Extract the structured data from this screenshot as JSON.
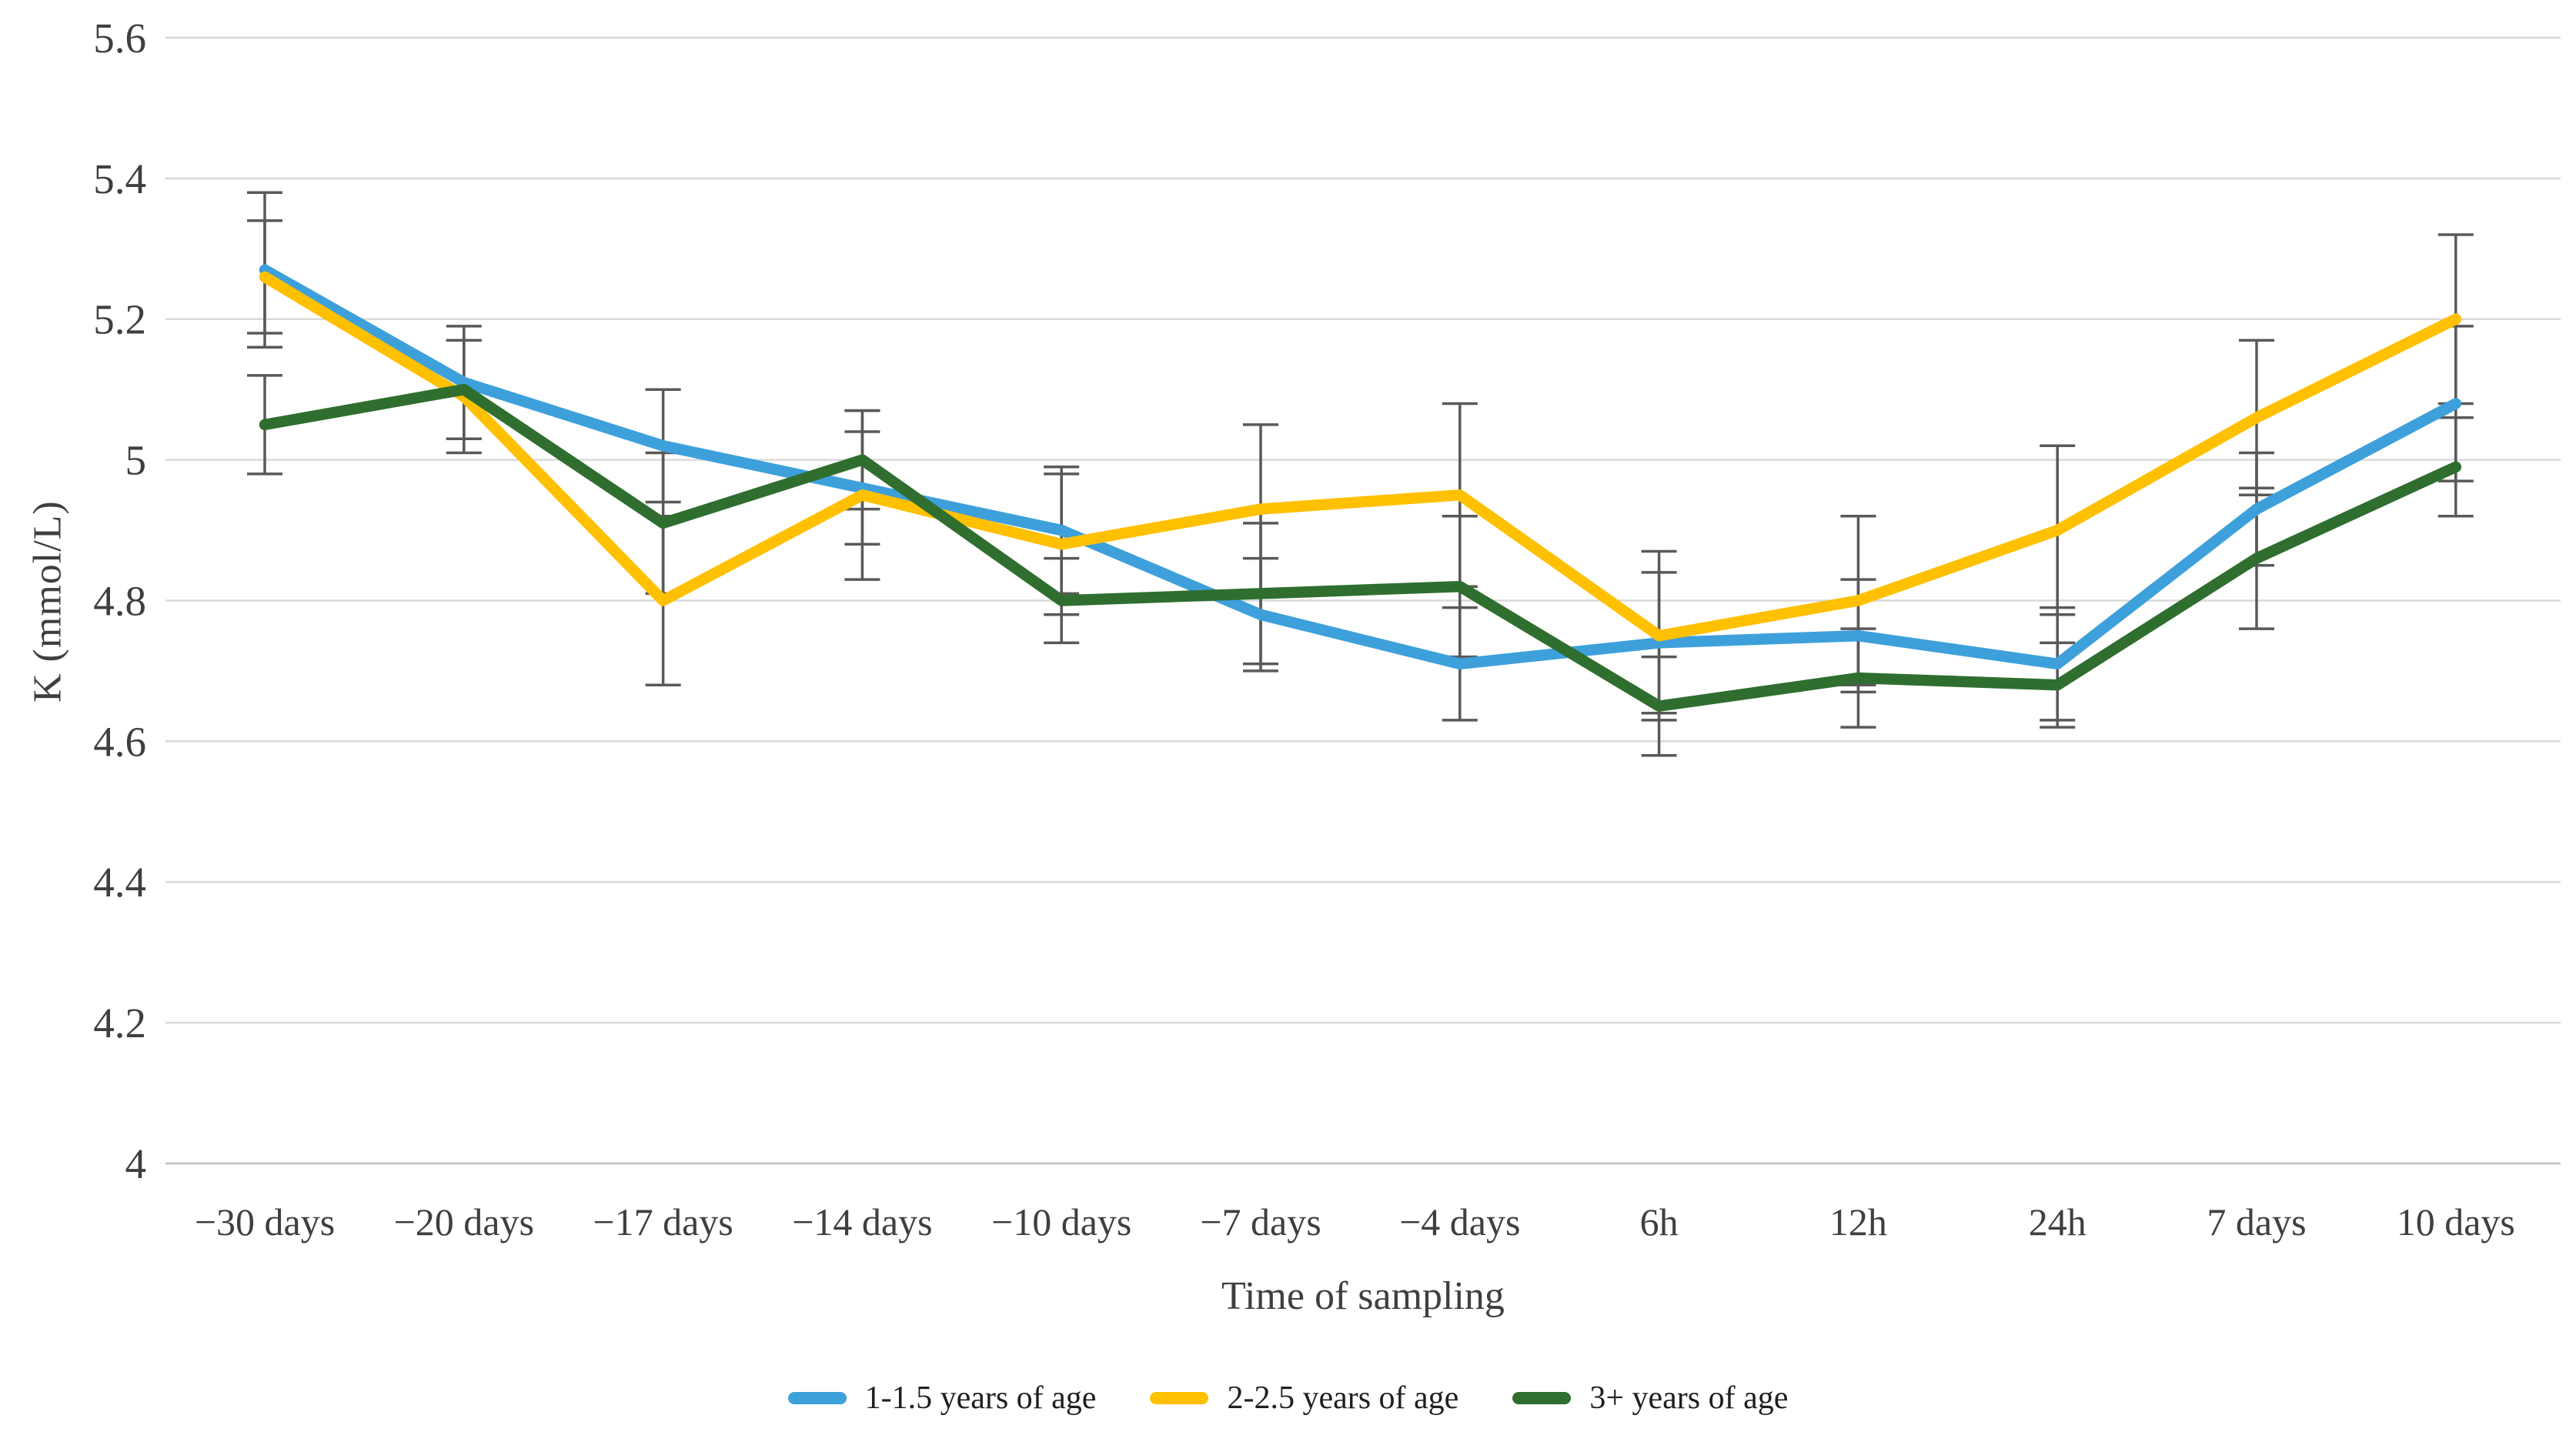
{
  "figure": {
    "background": "#FFFFFF",
    "text_color": "#3F3F3F",
    "grid_color": "#D9D9D9",
    "baseline_color": "#C8C8C8",
    "error_bar_color": "#595959"
  },
  "chart_data": {
    "type": "line",
    "title": "",
    "xlabel": "Time of sampling",
    "ylabel": "K (mmol/L)",
    "ylim": [
      4,
      5.6
    ],
    "ytick_step": 0.2,
    "ytick_labels": [
      "4",
      "4.2",
      "4.4",
      "4.6",
      "4.8",
      "5",
      "5.2",
      "5.4",
      "5.6"
    ],
    "grid": true,
    "legend_position": "bottom",
    "error_bars": true,
    "categories": [
      "−30 days",
      "−20 days",
      "−17 days",
      "−14 days",
      "−10 days",
      "−7 days",
      "−4 days",
      "6h",
      "12h",
      "24h",
      "7 days",
      "10 days"
    ],
    "series": [
      {
        "name": "1-1.5 years of age",
        "color": "#3DA0DB",
        "values": [
          5.27,
          5.11,
          5.02,
          4.96,
          4.9,
          4.78,
          4.71,
          4.74,
          4.75,
          4.71,
          4.93,
          5.08
        ],
        "errors": [
          0.11,
          0.08,
          0.08,
          0.08,
          0.09,
          0.08,
          0.08,
          0.1,
          0.08,
          0.08,
          0.08,
          0.11
        ]
      },
      {
        "name": "2-2.5 years of age",
        "color": "#FFC000",
        "values": [
          5.26,
          5.09,
          4.8,
          4.95,
          4.88,
          4.93,
          4.95,
          4.75,
          4.8,
          4.9,
          5.06,
          5.2
        ],
        "errors": [
          0.08,
          0.08,
          0.12,
          0.12,
          0.1,
          0.12,
          0.13,
          0.12,
          0.12,
          0.12,
          0.11,
          0.12
        ]
      },
      {
        "name": "3+ years of age",
        "color": "#2F6E2F",
        "values": [
          5.05,
          5.1,
          4.91,
          5.0,
          4.8,
          4.81,
          4.82,
          4.65,
          4.69,
          4.68,
          4.86,
          4.99
        ],
        "errors": [
          0.07,
          0.07,
          0.1,
          0.07,
          0.06,
          0.1,
          0.1,
          0.07,
          0.07,
          0.06,
          0.1,
          0.07
        ]
      }
    ]
  }
}
